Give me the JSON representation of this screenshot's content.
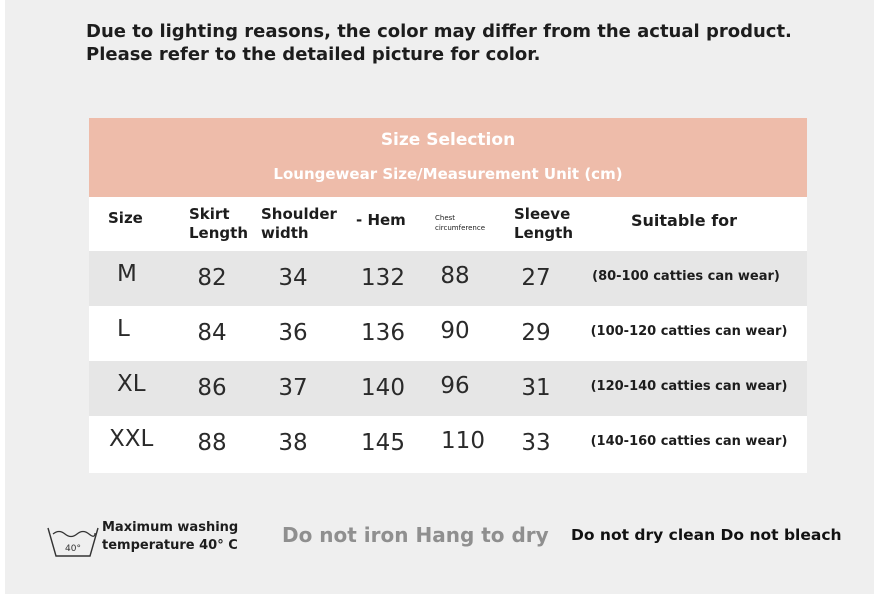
{
  "notice": {
    "line1": "Due to lighting reasons, the color may differ from the actual product.",
    "line2": "Please refer to the detailed picture for color."
  },
  "table": {
    "title": "Size Selection",
    "subtitle": "Loungewear Size/Measurement Unit (cm)",
    "headers": {
      "size": "Size",
      "skirt_1": "Skirt",
      "skirt_2": "Length",
      "shoulder_1": "Shoulder",
      "shoulder_2": "width",
      "hem": "- Hem",
      "chest_1": "Chest",
      "chest_2": "circumference",
      "sleeve_1": "Sleeve",
      "sleeve_2": "Length",
      "suitable": "Suitable for"
    },
    "rows": [
      {
        "size": "M",
        "skirt": "82",
        "shoulder": "34",
        "hem": "132",
        "chest": "88",
        "sleeve": "27",
        "fit": "(80-100 catties can wear)"
      },
      {
        "size": "L",
        "skirt": "84",
        "shoulder": "36",
        "hem": "136",
        "chest": "90",
        "sleeve": "29",
        "fit": "(100-120 catties can wear)"
      },
      {
        "size": "XL",
        "skirt": "86",
        "shoulder": "37",
        "hem": "140",
        "chest": "96",
        "sleeve": "31",
        "fit": "(120-140 catties can wear)"
      },
      {
        "size": "XXL",
        "skirt": "88",
        "shoulder": "38",
        "hem": "145",
        "chest": "110",
        "sleeve": "33",
        "fit": "(140-160 catties can wear)"
      }
    ]
  },
  "care": {
    "wash_icon": "wash-40-icon",
    "wash_temp": "40°",
    "wash_line1": "Maximum washing",
    "wash_line2": "temperature 40° C",
    "iron": "Do not iron Hang to dry",
    "dry": "Do not dry clean Do not bleach"
  },
  "colors": {
    "header_bg": "#eebcaa",
    "row_grey": "#e6e6e6",
    "page_bg": "#efefef"
  }
}
